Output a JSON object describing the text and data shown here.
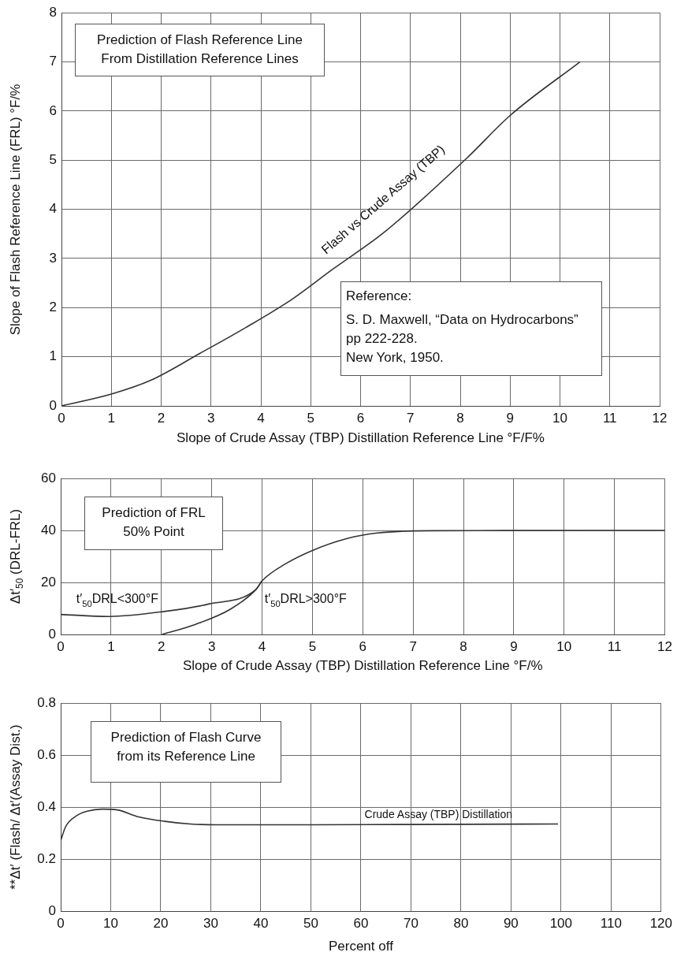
{
  "chart_data": [
    {
      "type": "line",
      "title": "Prediction of Flash Reference Line\nFrom Distillation Reference Lines",
      "xlabel": "Slope of Crude Assay (TBP) Distillation Reference Line °F/F%",
      "ylabel": "Slope of Flash Reference Line (FRL) °F/%",
      "xlim": [
        0,
        12
      ],
      "xticks": [
        0,
        1,
        2,
        3,
        4,
        5,
        6,
        7,
        8,
        9,
        10,
        11,
        12
      ],
      "ylim": [
        0,
        8
      ],
      "yticks": [
        0,
        1,
        2,
        3,
        4,
        5,
        6,
        7,
        8
      ],
      "grid": true,
      "marker": "none",
      "line_style": "solid",
      "annotations": [
        "Reference:\nS. D. Maxwell, “Data on Hydrocarbons”\npp 222-228.\nNew York, 1950."
      ],
      "series": [
        {
          "name": "Flash vs Crude Assay (TBP)",
          "color": "#333333",
          "x": [
            0,
            1,
            1.79,
            2.78,
            3.69,
            4.64,
            5.44,
            6.47,
            8.13,
            9.0,
            10.4
          ],
          "values": [
            0,
            0.24,
            0.52,
            1.07,
            1.59,
            2.18,
            2.78,
            3.53,
            5.04,
            5.91,
            7.0
          ]
        }
      ]
    },
    {
      "type": "line",
      "title": "Prediction of FRL\n50% Point",
      "ylabel": "Δt′$_{50}$ (DRL-FRL)",
      "xlabel": "Slope of Crude Assay (TBP) Distillation Reference Line °F/%",
      "xlim": [
        0,
        12
      ],
      "xticks": [
        0,
        1,
        2,
        3,
        4,
        5,
        6,
        7,
        8,
        9,
        10,
        11,
        12
      ],
      "ylim": [
        0,
        60
      ],
      "yticks": [
        0,
        20,
        40,
        60
      ],
      "grid": true,
      "marker": "none",
      "line_style": "solid",
      "series": [
        {
          "name": "t′$_{50}$DRL<300°F",
          "color": "#333333",
          "x": [
            0,
            0.96,
            2.08,
            2.94,
            3.88,
            4.0,
            4.48,
            5.0,
            5.69,
            6.29,
            7.4,
            12
          ],
          "values": [
            7.7,
            6.9,
            8.9,
            11.7,
            17.3,
            20.6,
            27.3,
            32.3,
            36.9,
            39,
            39.9,
            40
          ]
        },
        {
          "name": "t′$_{50}$DRL>300°F",
          "color": "#333333",
          "x": [
            2.01,
            2.68,
            3.37,
            3.88,
            4.0
          ],
          "values": [
            0,
            3.9,
            9.7,
            17.3,
            20.6
          ]
        }
      ]
    },
    {
      "type": "line",
      "title": "Prediction of Flash Curve\nfrom its Reference Line",
      "xlabel": "Percent off",
      "ylabel": "**Δt′ (Flash/ Δt′(Assay Dist.)",
      "xlim": [
        0,
        120
      ],
      "xticks": [
        0,
        10,
        20,
        30,
        40,
        50,
        60,
        70,
        80,
        90,
        100,
        110,
        120
      ],
      "ylim": [
        0,
        0.8
      ],
      "yticks": [
        0,
        0.2,
        0.4,
        0.6,
        0.8
      ],
      "grid": true,
      "marker": "none",
      "line_style": "solid",
      "series": [
        {
          "name": "Crude Assay (TBP) Distillation",
          "color": "#333333",
          "x": [
            0,
            1,
            3.2,
            5.3,
            8.3,
            11.3,
            15.6,
            20.8,
            25.9,
            31.1,
            50,
            70,
            99.4
          ],
          "values": [
            0.271,
            0.325,
            0.367,
            0.384,
            0.392,
            0.389,
            0.362,
            0.345,
            0.335,
            0.332,
            0.332,
            0.333,
            0.335
          ]
        }
      ]
    }
  ]
}
